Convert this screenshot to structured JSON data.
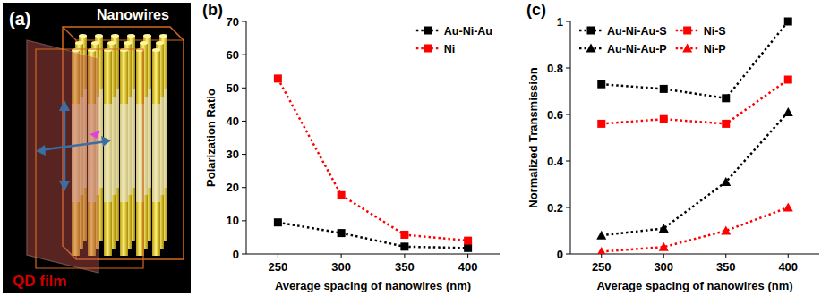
{
  "illustration": {
    "label": "(a)",
    "nanowires_label": "Nanowires",
    "film_label": "QD film"
  },
  "chart_data": [
    {
      "type": "line",
      "title": "(b)",
      "x_label": "Average spacing of nanowires (nm)",
      "y_label": "Polarization Ratio",
      "categories": [
        "250",
        "300",
        "350",
        "400"
      ],
      "series": [
        {
          "name": "Au-Ni-Au",
          "color": "#000000",
          "marker": "square",
          "line_style": "dotted",
          "values": [
            9.5,
            6.3,
            2.2,
            1.8
          ]
        },
        {
          "name": "Ni",
          "color": "#ff0000",
          "marker": "square",
          "line_style": "dotted",
          "values": [
            52.8,
            17.7,
            5.8,
            4.0
          ]
        }
      ],
      "ylim": [
        0,
        70
      ],
      "yticks": [
        0,
        10,
        20,
        30,
        40,
        50,
        60,
        70
      ],
      "grid": false,
      "legend": "upper right"
    },
    {
      "type": "line",
      "title": "(c)",
      "x_label": "Average spacing of nanowires (nm)",
      "y_label": "Normalized Transmission",
      "categories": [
        "250",
        "300",
        "350",
        "400"
      ],
      "series": [
        {
          "name": "Au-Ni-Au-S",
          "color": "#000000",
          "marker": "square",
          "line_style": "dotted",
          "values": [
            0.73,
            0.71,
            0.67,
            1.0
          ]
        },
        {
          "name": "Ni-S",
          "color": "#ff0000",
          "marker": "square",
          "line_style": "dotted",
          "values": [
            0.56,
            0.58,
            0.56,
            0.75
          ]
        },
        {
          "name": "Au-Ni-Au-P",
          "color": "#000000",
          "marker": "triangle",
          "line_style": "dotted",
          "values": [
            0.08,
            0.11,
            0.31,
            0.61
          ]
        },
        {
          "name": "Ni-P",
          "color": "#ff0000",
          "marker": "triangle",
          "line_style": "dotted",
          "values": [
            0.01,
            0.03,
            0.1,
            0.2
          ]
        }
      ],
      "ylim": [
        0,
        1
      ],
      "yticks": [
        0,
        0.2,
        0.4,
        0.6,
        0.8,
        1
      ],
      "grid": false,
      "legend": "upper left"
    }
  ]
}
